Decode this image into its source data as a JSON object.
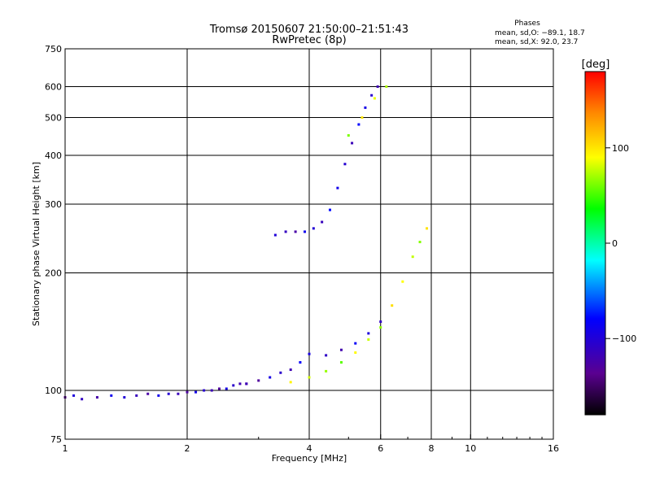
{
  "chart_data": {
    "type": "scatter",
    "title": "Tromsø 20150607 21:50:00–21:51:43",
    "subtitle": "RwPretec (8p)",
    "xlabel": "Frequency [MHz]",
    "ylabel": "Stationary phase Virtual Height [km]",
    "x_scale": "log",
    "y_scale": "log",
    "xlim": [
      1,
      16
    ],
    "ylim": [
      75,
      750
    ],
    "grid": true,
    "x_ticks": [
      1,
      2,
      4,
      6,
      8,
      10,
      16
    ],
    "x_tick_labels": [
      "1",
      "2",
      "4",
      "6",
      "8",
      "10",
      "16"
    ],
    "x_grid": [
      2,
      4,
      6,
      8,
      10
    ],
    "y_ticks": [
      75,
      100,
      200,
      300,
      400,
      500,
      600,
      750
    ],
    "y_tick_labels": [
      "75",
      "100",
      "200",
      "300",
      "400",
      "500",
      "600",
      "750"
    ],
    "y_grid": [
      100,
      200,
      300,
      400,
      500,
      600
    ],
    "phase_stats": {
      "heading": "Phases",
      "o_line": "mean, sd,O: −89.1, 18.7",
      "x_line": "mean, sd,X:  92.0, 23.7"
    },
    "colorbar": {
      "unit": "[deg]",
      "range": [
        -180,
        180
      ],
      "ticks": [
        100,
        0,
        -100
      ],
      "tick_labels": [
        "100",
        "0",
        "−100"
      ]
    },
    "traces": [
      {
        "name": "",
        "mode": "O",
        "points": [
          [
            1.0,
            96
          ],
          [
            1.05,
            97
          ],
          [
            1.1,
            95
          ],
          [
            1.2,
            96
          ],
          [
            1.3,
            97
          ],
          [
            1.4,
            96
          ],
          [
            1.5,
            97
          ],
          [
            1.6,
            98
          ],
          [
            1.7,
            97
          ],
          [
            1.8,
            98
          ],
          [
            1.9,
            98
          ],
          [
            2.0,
            99
          ],
          [
            2.1,
            99
          ],
          [
            2.2,
            100
          ],
          [
            2.3,
            100
          ],
          [
            2.4,
            101
          ],
          [
            2.5,
            101
          ],
          [
            2.6,
            103
          ],
          [
            2.7,
            104
          ],
          [
            2.8,
            104
          ]
        ],
        "phase": -110
      },
      {
        "name": "",
        "mode": "O",
        "points": [
          [
            2.8,
            104
          ],
          [
            3.0,
            106
          ],
          [
            3.2,
            108
          ],
          [
            3.4,
            111
          ],
          [
            3.6,
            113
          ],
          [
            3.8,
            118
          ],
          [
            4.0,
            124
          ],
          [
            4.4,
            123
          ],
          [
            4.8,
            127
          ],
          [
            5.2,
            132
          ],
          [
            5.6,
            140
          ],
          [
            6.0,
            150
          ]
        ],
        "phase": -105
      },
      {
        "name": "",
        "mode": "O",
        "points": [
          [
            3.3,
            250
          ],
          [
            3.5,
            255
          ],
          [
            3.7,
            255
          ],
          [
            3.9,
            255
          ],
          [
            4.1,
            260
          ],
          [
            4.3,
            270
          ],
          [
            4.5,
            290
          ],
          [
            4.7,
            330
          ],
          [
            4.9,
            380
          ],
          [
            5.1,
            430
          ],
          [
            5.3,
            480
          ],
          [
            5.5,
            530
          ],
          [
            5.7,
            570
          ],
          [
            5.9,
            600
          ]
        ],
        "phase": -100
      },
      {
        "name": "",
        "mode": "X",
        "points": [
          [
            3.6,
            105
          ],
          [
            4.0,
            108
          ],
          [
            4.4,
            112
          ],
          [
            4.8,
            118
          ],
          [
            5.2,
            125
          ],
          [
            5.6,
            135
          ],
          [
            6.0,
            145
          ],
          [
            6.4,
            165
          ],
          [
            6.8,
            190
          ],
          [
            7.2,
            220
          ],
          [
            7.5,
            240
          ],
          [
            7.8,
            260
          ]
        ],
        "phase": 80
      },
      {
        "name": "",
        "mode": "X",
        "points": [
          [
            5.0,
            450
          ],
          [
            5.4,
            500
          ],
          [
            5.8,
            560
          ],
          [
            6.2,
            600
          ]
        ],
        "phase": 85
      }
    ]
  }
}
